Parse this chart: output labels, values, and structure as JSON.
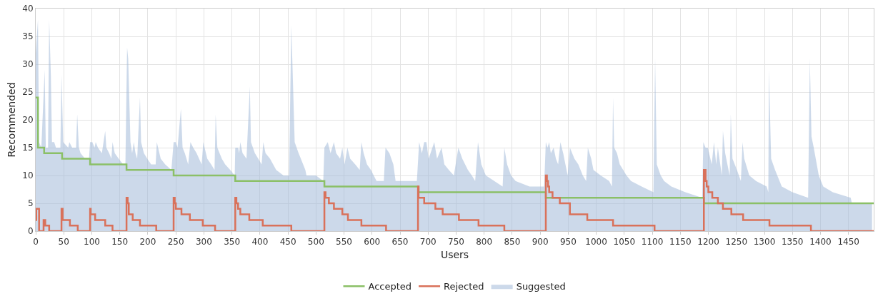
{
  "chart_data": {
    "type": "step",
    "xlabel": "Users",
    "ylabel": "Recommended",
    "xlim": [
      0,
      1495
    ],
    "xticks": [
      0,
      50,
      100,
      150,
      200,
      250,
      300,
      350,
      400,
      450,
      500,
      550,
      600,
      650,
      700,
      750,
      800,
      850,
      900,
      950,
      1000,
      1050,
      1100,
      1150,
      1200,
      1250,
      1300,
      1350,
      1400,
      1450
    ],
    "ylim": [
      0,
      40
    ],
    "yticks": [
      0,
      5,
      10,
      15,
      20,
      25,
      30,
      35,
      40
    ],
    "grid": true,
    "legend": "bottom",
    "marker": "none",
    "line_style": "solid",
    "series": [
      {
        "name": "Accepted",
        "color": "#8bc067",
        "x": [
          0,
          4,
          15,
          47,
          97,
          162,
          246,
          356,
          515,
          683,
          910,
          1192,
          1495
        ],
        "values": [
          24,
          15,
          14,
          13,
          12,
          11,
          10,
          9,
          8,
          7,
          6,
          5,
          5
        ]
      },
      {
        "name": "Rejected",
        "color": "#d9715a",
        "x": [
          0,
          1,
          6,
          14,
          17,
          24,
          46,
          48,
          61,
          75,
          97,
          98,
          106,
          124,
          137,
          162,
          164,
          166,
          173,
          186,
          215,
          246,
          248,
          250,
          260,
          275,
          298,
          320,
          356,
          358,
          361,
          365,
          381,
          405,
          456,
          515,
          517,
          523,
          532,
          547,
          557,
          581,
          625,
          682,
          683,
          693,
          713,
          726,
          755,
          790,
          836,
          910,
          912,
          914,
          916,
          922,
          935,
          953,
          984,
          1030,
          1104,
          1192,
          1195,
          1197,
          1200,
          1207,
          1217,
          1226,
          1241,
          1262,
          1309,
          1383,
          1495
        ],
        "values": [
          2,
          4,
          0,
          2,
          1,
          0,
          4,
          2,
          1,
          0,
          4,
          3,
          2,
          1,
          0,
          6,
          5,
          3,
          2,
          1,
          0,
          6,
          5,
          4,
          3,
          2,
          1,
          0,
          6,
          5,
          4,
          3,
          2,
          1,
          0,
          7,
          6,
          5,
          4,
          3,
          2,
          1,
          0,
          8,
          6,
          5,
          4,
          3,
          2,
          1,
          0,
          10,
          9,
          8,
          7,
          6,
          5,
          3,
          2,
          1,
          0,
          11,
          9,
          8,
          7,
          6,
          5,
          4,
          3,
          2,
          1,
          0,
          0
        ]
      },
      {
        "name": "Suggested",
        "type": "area",
        "color": "#a3b9d9",
        "x": [
          0,
          4,
          6,
          10,
          16,
          18,
          22,
          24,
          27,
          29,
          33,
          36,
          44,
          46,
          49,
          58,
          60,
          65,
          72,
          74,
          77,
          80,
          88,
          95,
          97,
          101,
          105,
          107,
          111,
          118,
          124,
          126,
          131,
          135,
          137,
          141,
          148,
          156,
          160,
          163,
          165,
          169,
          172,
          175,
          178,
          181,
          186,
          188,
          193,
          199,
          206,
          214,
          216,
          223,
          231,
          242,
          246,
          250,
          253,
          259,
          262,
          266,
          272,
          276,
          281,
          287,
          296,
          299,
          306,
          313,
          319,
          321,
          324,
          332,
          338,
          347,
          355,
          356,
          361,
          363,
          365,
          369,
          376,
          382,
          384,
          391,
          397,
          403,
          406,
          410,
          418,
          429,
          442,
          452,
          456,
          462,
          469,
          473,
          481,
          483,
          500,
          513,
          515,
          521,
          526,
          532,
          536,
          543,
          547,
          551,
          556,
          561,
          570,
          578,
          581,
          585,
          591,
          598,
          608,
          621,
          624,
          631,
          638,
          642,
          657,
          680,
          684,
          689,
          693,
          697,
          701,
          711,
          716,
          724,
          729,
          737,
          746,
          754,
          761,
          771,
          778,
          784,
          789,
          795,
          803,
          818,
          833,
          836,
          841,
          848,
          856,
          881,
          907,
          910,
          913,
          916,
          919,
          924,
          928,
          932,
          936,
          941,
          949,
          953,
          961,
          968,
          976,
          982,
          985,
          991,
          995,
          1008,
          1023,
          1028,
          1030,
          1032,
          1037,
          1042,
          1054,
          1062,
          1081,
          1102,
          1105,
          1108,
          1115,
          1121,
          1134,
          1159,
          1189,
          1191,
          1195,
          1199,
          1206,
          1210,
          1214,
          1217,
          1224,
          1226,
          1230,
          1238,
          1240,
          1243,
          1251,
          1258,
          1261,
          1264,
          1273,
          1285,
          1304,
          1307,
          1308,
          1312,
          1319,
          1327,
          1331,
          1350,
          1378,
          1381,
          1384,
          1388,
          1397,
          1405,
          1422,
          1454,
          1456,
          1492
        ],
        "values": [
          32,
          38,
          16,
          15,
          29,
          15,
          15,
          38,
          28,
          16,
          16,
          15,
          15,
          28,
          16,
          15,
          16,
          15,
          15,
          21,
          15,
          14,
          13,
          13,
          16,
          16,
          15,
          16,
          15,
          14,
          18,
          15,
          14,
          13,
          16,
          14,
          13,
          12,
          12,
          33,
          31,
          16,
          14,
          16,
          14,
          13,
          24,
          16,
          14,
          13,
          12,
          12,
          16,
          13,
          12,
          11,
          16,
          16,
          15,
          22,
          15,
          14,
          12,
          16,
          15,
          14,
          12,
          16,
          13,
          12,
          11,
          21,
          15,
          13,
          12,
          11,
          10,
          15,
          15,
          14,
          16,
          14,
          13,
          26,
          16,
          14,
          13,
          12,
          16,
          14,
          13,
          11,
          10,
          10,
          37,
          16,
          14,
          13,
          11,
          10,
          10,
          9,
          15,
          16,
          14,
          16,
          14,
          13,
          15,
          12,
          15,
          13,
          12,
          11,
          16,
          14,
          12,
          11,
          9,
          9,
          15,
          14,
          12,
          9,
          9,
          9,
          16,
          14,
          16,
          16,
          13,
          16,
          13,
          15,
          12,
          11,
          10,
          15,
          13,
          11,
          10,
          9,
          16,
          12,
          10,
          9,
          8,
          15,
          12,
          10,
          9,
          8,
          8,
          16,
          15,
          16,
          14,
          15,
          13,
          12,
          16,
          14,
          10,
          15,
          13,
          12,
          10,
          9,
          15,
          13,
          11,
          10,
          9,
          8,
          24,
          15,
          14,
          12,
          10,
          9,
          8,
          7,
          31,
          12,
          10,
          9,
          8,
          7,
          6,
          16,
          15,
          15,
          12,
          16,
          12,
          15,
          10,
          18,
          14,
          10,
          21,
          13,
          11,
          9,
          16,
          13,
          10,
          9,
          8,
          7,
          29,
          13,
          11,
          9,
          8,
          7,
          6,
          31,
          17,
          15,
          10,
          8,
          7,
          6,
          5,
          5
        ]
      }
    ]
  }
}
